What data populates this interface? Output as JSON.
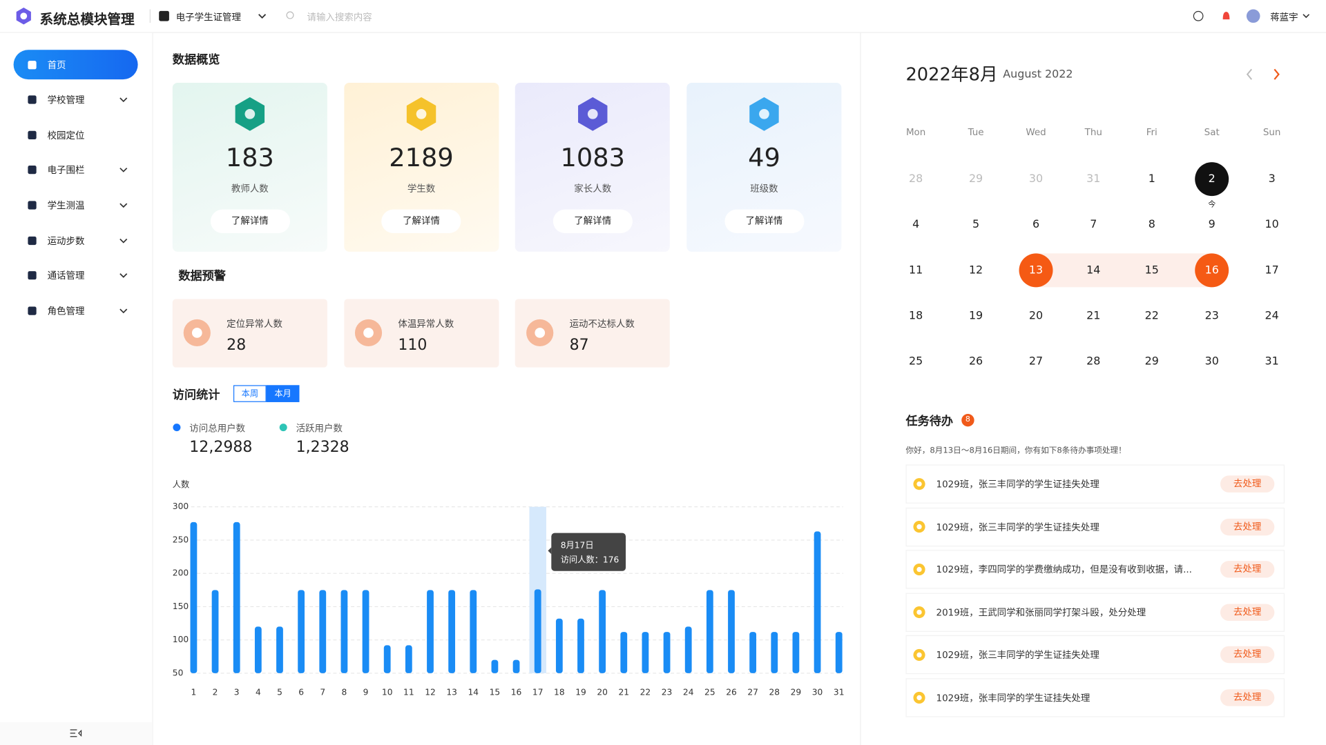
{
  "header": {
    "title": "系统总模块管理",
    "module": "电子学生证管理",
    "search_placeholder": "请输入搜索内容",
    "user": "蒋蓝宇"
  },
  "sidebar": {
    "items": [
      {
        "label": "首页",
        "expandable": false
      },
      {
        "label": "学校管理",
        "expandable": true
      },
      {
        "label": "校园定位",
        "expandable": false
      },
      {
        "label": "电子围栏",
        "expandable": true
      },
      {
        "label": "学生测温",
        "expandable": true
      },
      {
        "label": "运动步数",
        "expandable": true
      },
      {
        "label": "通话管理",
        "expandable": true
      },
      {
        "label": "角色管理",
        "expandable": true
      }
    ],
    "active": 0
  },
  "overview": {
    "title": "数据概览",
    "cards": [
      {
        "value": 183,
        "label": "教师人数",
        "button": "了解详情",
        "color": "#16a085"
      },
      {
        "value": 2189,
        "label": "学生数",
        "button": "了解详情",
        "color": "#f5c22b"
      },
      {
        "value": 1083,
        "label": "家长人数",
        "button": "了解详情",
        "color": "#5b5bd6"
      },
      {
        "value": 49,
        "label": "班级数",
        "button": "了解详情",
        "color": "#3aa7ee"
      }
    ]
  },
  "warning": {
    "title": "数据预警",
    "cards": [
      {
        "label": "定位异常人数",
        "value": 28
      },
      {
        "label": "体温异常人数",
        "value": 110
      },
      {
        "label": "运动不达标人数",
        "value": 87
      }
    ]
  },
  "visits": {
    "title": "访问统计",
    "tabs": [
      "本周",
      "本月"
    ],
    "active_tab": 1,
    "stats": [
      {
        "name": "访问总用户数",
        "value": "12,2988",
        "color": "#1677ff"
      },
      {
        "name": "活跃用户数",
        "value": "1,2328",
        "color": "#2ec4b6"
      }
    ],
    "chart": {
      "type": "bar",
      "y_label": "人数",
      "categories": [
        1,
        2,
        3,
        4,
        5,
        6,
        7,
        8,
        9,
        10,
        11,
        12,
        13,
        14,
        15,
        16,
        17,
        18,
        19,
        20,
        21,
        22,
        23,
        24,
        25,
        26,
        27,
        28,
        29,
        30,
        31
      ],
      "values": [
        277,
        175,
        277,
        120,
        120,
        175,
        175,
        175,
        175,
        92,
        92,
        175,
        175,
        175,
        70,
        70,
        176,
        132,
        132,
        175,
        112,
        112,
        112,
        120,
        175,
        175,
        112,
        112,
        112,
        263,
        112
      ],
      "color": "#1a8cf5",
      "ylim": [
        50,
        300
      ],
      "yticks": [
        50,
        100,
        150,
        200,
        250,
        300
      ],
      "grid": true,
      "highlight_index": 16,
      "tooltip": {
        "title": "8月17日",
        "label": "访问人数：176"
      }
    }
  },
  "calendar": {
    "title": "2022年8月",
    "subtitle": "August  2022",
    "weekdays": [
      "Mon",
      "Tue",
      "Wed",
      "Thu",
      "Fri",
      "Sat",
      "Sun"
    ],
    "prev_days": [
      28,
      29,
      30,
      31
    ],
    "days": [
      1,
      2,
      3,
      4,
      5,
      6,
      7,
      8,
      9,
      10,
      11,
      12,
      13,
      14,
      15,
      16,
      17,
      18,
      19,
      20,
      21,
      22,
      23,
      24,
      25,
      26,
      27,
      28,
      29,
      30,
      31
    ],
    "today": 2,
    "today_label": "今",
    "range": [
      13,
      16
    ]
  },
  "tasks": {
    "title": "任务待办",
    "count": 8,
    "note": "你好，8月13日～8月16日期间，你有如下8条待办事项处理！",
    "action": "去处理",
    "items": [
      "1029班，张三丰同学的学生证挂失处理",
      "1029班，张三丰同学的学生证挂失处理",
      "1029班，李四同学的学费缴纳成功，但是没有收到收据，请...",
      "2019班，王武同学和张丽同学打架斗殴，处分处理",
      "1029班，张三丰同学的学生证挂失处理",
      "1029班，张丰同学的学生证挂失处理"
    ]
  }
}
